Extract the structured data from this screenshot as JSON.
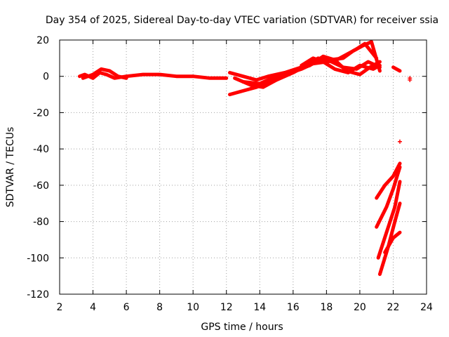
{
  "chart_data": {
    "type": "scatter",
    "title": "Day 354 of 2025, Sidereal Day-to-day VTEC variation (SDTVAR) for receiver ssia",
    "xlabel": "GPS time / hours",
    "ylabel": "SDTVAR / TECUs",
    "xlim": [
      2,
      24
    ],
    "ylim": [
      -120,
      20
    ],
    "x_ticks": [
      2,
      4,
      6,
      8,
      10,
      12,
      14,
      16,
      18,
      20,
      22,
      24
    ],
    "y_ticks": [
      -120,
      -100,
      -80,
      -60,
      -40,
      -20,
      0,
      20
    ],
    "x_tick_labels": [
      "2",
      "4",
      "6",
      "8",
      "10",
      "12",
      "14",
      "16",
      "18",
      "20",
      "22",
      "24"
    ],
    "y_tick_labels": [
      "-120",
      "-100",
      "-80",
      "-60",
      "-40",
      "-20",
      "0",
      "20"
    ],
    "grid": true,
    "marker": "+",
    "color": "#ff0000",
    "series": [
      {
        "name": "trace-1",
        "x": [
          3.2,
          3.5,
          4.0,
          4.4,
          4.8,
          5.3,
          6.0,
          7.0,
          8.0,
          9.0,
          10.0,
          11.0,
          12.0
        ],
        "y": [
          0,
          1,
          -1,
          2,
          1,
          -1,
          0,
          1,
          1,
          0,
          0,
          -1,
          -1
        ]
      },
      {
        "name": "trace-2",
        "x": [
          3.4,
          4.0,
          4.5,
          5.0,
          5.5,
          6.0
        ],
        "y": [
          -1,
          1,
          4,
          3,
          0,
          -1
        ]
      },
      {
        "name": "trace-3",
        "x": [
          12.2,
          13.0,
          13.8,
          14.5,
          15.5,
          16.5,
          17.2,
          18.0,
          18.6,
          19.2,
          19.8,
          20.3,
          21.0
        ],
        "y": [
          -10,
          -8,
          -6,
          -3,
          1,
          4,
          7,
          8,
          9,
          12,
          15,
          18,
          10
        ]
      },
      {
        "name": "trace-4",
        "x": [
          12.2,
          13.0,
          13.8,
          14.5,
          15.5,
          16.5,
          17.5,
          18.2,
          19.0,
          19.6,
          20.2,
          20.7,
          21.2
        ],
        "y": [
          2,
          0,
          -2,
          0,
          2,
          5,
          8,
          9,
          10,
          14,
          17,
          19,
          3
        ]
      },
      {
        "name": "trace-5",
        "x": [
          12.5,
          13.5,
          14.2,
          15.0,
          16.0,
          16.8,
          17.5,
          18.3,
          19.0,
          19.8,
          20.5,
          21.2
        ],
        "y": [
          -1,
          -5,
          -6,
          -2,
          2,
          6,
          10,
          8,
          5,
          4,
          8,
          5
        ]
      },
      {
        "name": "trace-6",
        "x": [
          13.0,
          14.0,
          15.0,
          16.0,
          17.0,
          17.8,
          18.5,
          19.2,
          20.0,
          20.6,
          21.2
        ],
        "y": [
          -3,
          -4,
          0,
          3,
          6,
          11,
          9,
          3,
          1,
          5,
          8
        ]
      },
      {
        "name": "trace-7",
        "x": [
          16.5,
          17.2,
          17.8,
          18.5,
          19.3,
          20.0,
          20.8,
          21.2
        ],
        "y": [
          6,
          10,
          8,
          4,
          2,
          6,
          4,
          6
        ]
      },
      {
        "name": "trace-8",
        "x": [
          21.0,
          21.5,
          22.0,
          22.4
        ],
        "y": [
          -67,
          -60,
          -55,
          -48
        ]
      },
      {
        "name": "trace-9",
        "x": [
          21.0,
          21.6,
          22.0,
          22.4
        ],
        "y": [
          -83,
          -72,
          -62,
          -50
        ]
      },
      {
        "name": "trace-10",
        "x": [
          21.1,
          21.6,
          22.1,
          22.4
        ],
        "y": [
          -100,
          -86,
          -72,
          -58
        ]
      },
      {
        "name": "trace-11",
        "x": [
          21.2,
          21.7,
          22.1,
          22.4
        ],
        "y": [
          -109,
          -94,
          -80,
          -70
        ]
      },
      {
        "name": "trace-12",
        "x": [
          21.5,
          22.0,
          22.4
        ],
        "y": [
          -97,
          -89,
          -86
        ]
      },
      {
        "name": "trace-13",
        "x": [
          22.0,
          22.4
        ],
        "y": [
          5,
          3
        ]
      }
    ],
    "isolated_points": {
      "x": [
        22.4,
        23.0,
        23.0
      ],
      "y": [
        -36,
        -1,
        -2
      ]
    }
  }
}
